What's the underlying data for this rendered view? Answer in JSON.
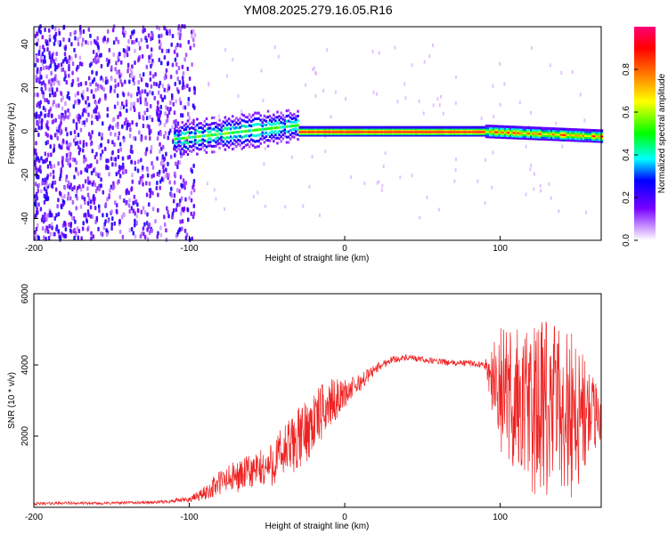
{
  "title": "YM08.2025.279.16.05.R16",
  "colors": {
    "snr_line": "#ee2222",
    "axis": "#000000",
    "background": "#ffffff"
  },
  "chart_data": [
    {
      "type": "heatmap",
      "name": "spectrogram",
      "title": "YM08.2025.279.16.05.R16",
      "xlabel": "Height of straight line (km)",
      "ylabel": "Frequency (Hz)",
      "xlim": [
        -200,
        165
      ],
      "ylim": [
        -50,
        48
      ],
      "xticks": [
        "-200",
        "-100",
        "0",
        "100"
      ],
      "yticks": [
        "-40",
        "-20",
        "0",
        "20",
        "40"
      ],
      "colorbar": {
        "label": "Normalized spectral amplitude",
        "range": [
          0,
          1
        ],
        "ticks": [
          "0.0",
          "0.2",
          "0.4",
          "0.6",
          "0.8"
        ],
        "colors": [
          "#ffffff",
          "#cc99ff",
          "#7700ff",
          "#0000ff",
          "#00ffff",
          "#00ff00",
          "#ffff00",
          "#ff7700",
          "#ff0000",
          "#ff0077"
        ]
      },
      "description_regions": [
        {
          "x_range": [
            -200,
            -100
          ],
          "freq_range": [
            -50,
            48
          ],
          "amplitude": 0.15
        },
        {
          "x_range": [
            -100,
            -30
          ],
          "freq_center": 0,
          "freq_halfwidth": 7,
          "amplitude": 0.45
        },
        {
          "x_range": [
            -30,
            90
          ],
          "freq_center": 0,
          "freq_halfwidth": 2,
          "amplitude": 0.9
        },
        {
          "x_range": [
            90,
            165
          ],
          "freq_center": 0,
          "freq_halfwidth": 3,
          "amplitude": 0.7
        }
      ]
    },
    {
      "type": "line",
      "name": "snr",
      "xlabel": "Height of straight line (km)",
      "ylabel": "SNR (10 * v/v)",
      "xlim": [
        -200,
        165
      ],
      "ylim": [
        0,
        6000
      ],
      "xticks": [
        "-200",
        "-100",
        "0",
        "100"
      ],
      "yticks": [
        "2000",
        "4000",
        "6000"
      ],
      "series": [
        {
          "name": "SNR",
          "x": [
            -200,
            -180,
            -160,
            -140,
            -120,
            -100,
            -90,
            -80,
            -70,
            -60,
            -50,
            -40,
            -30,
            -20,
            -10,
            0,
            10,
            20,
            30,
            40,
            50,
            60,
            70,
            80,
            90,
            100,
            110,
            120,
            130,
            140,
            150,
            160,
            165
          ],
          "values": [
            100,
            120,
            110,
            130,
            140,
            220,
            400,
            700,
            850,
            1000,
            1100,
            1500,
            1900,
            2400,
            2900,
            3200,
            3500,
            3900,
            4150,
            4200,
            4150,
            4100,
            4050,
            4050,
            4000,
            3300,
            3000,
            2700,
            2700,
            2800,
            2600,
            2500,
            2500
          ],
          "noise_amplitude": [
            40,
            40,
            40,
            40,
            40,
            80,
            200,
            400,
            450,
            500,
            600,
            800,
            900,
            900,
            700,
            400,
            250,
            150,
            100,
            90,
            90,
            90,
            90,
            90,
            90,
            1800,
            2200,
            2400,
            2600,
            2500,
            2400,
            1200,
            600
          ]
        }
      ]
    }
  ]
}
